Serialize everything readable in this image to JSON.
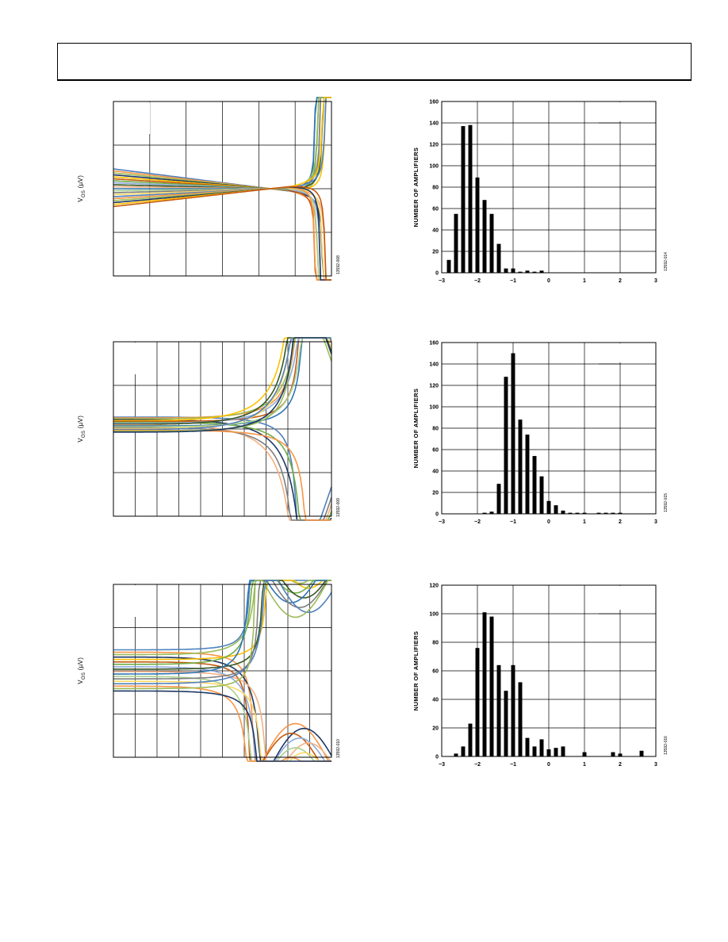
{
  "header": {},
  "left_panels": [
    {
      "ylabel_main": "V",
      "ylabel_sub": "OS",
      "ylabel_unit": " (µV)",
      "figure_id": "13592-008"
    },
    {
      "ylabel_main": "V",
      "ylabel_sub": "OS",
      "ylabel_unit": " (µV)",
      "figure_id": "13592-009"
    },
    {
      "ylabel_main": "V",
      "ylabel_sub": "OS",
      "ylabel_unit": " (µV)",
      "figure_id": "13592-010"
    }
  ],
  "histogram_ylabel": "NUMBER OF AMPLIFIERS",
  "chart_data": [
    {
      "type": "bar",
      "figure_id": "13592-014",
      "ylabel": "NUMBER OF AMPLIFIERS",
      "xlabel": "",
      "xlim": [
        -3,
        3
      ],
      "ylim": [
        0,
        160
      ],
      "xticks": [
        "−3",
        "−2",
        "−1",
        "0",
        "1",
        "2",
        "3"
      ],
      "yticks": [
        "0",
        "20",
        "40",
        "60",
        "80",
        "100",
        "120",
        "140",
        "160"
      ],
      "x": [
        -2.8,
        -2.6,
        -2.4,
        -2.2,
        -2.0,
        -1.8,
        -1.6,
        -1.4,
        -1.2,
        -1.0,
        -0.8,
        -0.6,
        -0.4,
        -0.2
      ],
      "values": [
        12,
        55,
        137,
        138,
        89,
        68,
        55,
        27,
        4,
        4,
        1,
        2,
        1,
        2
      ]
    },
    {
      "type": "bar",
      "figure_id": "13592-015",
      "ylabel": "NUMBER OF AMPLIFIERS",
      "xlabel": "",
      "xlim": [
        -3,
        3
      ],
      "ylim": [
        0,
        160
      ],
      "xticks": [
        "−3",
        "−2",
        "−1",
        "0",
        "1",
        "2",
        "3"
      ],
      "yticks": [
        "0",
        "20",
        "40",
        "60",
        "80",
        "100",
        "120",
        "140",
        "160"
      ],
      "x": [
        -1.8,
        -1.6,
        -1.4,
        -1.2,
        -1.0,
        -0.8,
        -0.6,
        -0.4,
        -0.2,
        0.0,
        0.2,
        0.4,
        0.6,
        0.8,
        1.0,
        1.4,
        1.6,
        1.8,
        2.0
      ],
      "values": [
        1,
        2,
        28,
        128,
        150,
        88,
        74,
        54,
        35,
        12,
        8,
        3,
        1,
        1,
        1,
        1,
        1,
        1,
        1
      ]
    },
    {
      "type": "bar",
      "figure_id": "13592-016",
      "ylabel": "NUMBER OF AMPLIFIERS",
      "xlabel": "",
      "xlim": [
        -3,
        3
      ],
      "ylim": [
        0,
        120
      ],
      "xticks": [
        "−3",
        "−2",
        "−1",
        "0",
        "1",
        "2",
        "3"
      ],
      "yticks": [
        "0",
        "20",
        "40",
        "60",
        "80",
        "100",
        "120"
      ],
      "x": [
        -2.6,
        -2.4,
        -2.2,
        -2.0,
        -1.8,
        -1.6,
        -1.4,
        -1.2,
        -1.0,
        -0.8,
        -0.6,
        -0.4,
        -0.2,
        0.0,
        0.2,
        0.4,
        1.0,
        1.8,
        2.0,
        2.6
      ],
      "values": [
        2,
        7,
        23,
        76,
        101,
        98,
        64,
        46,
        64,
        52,
        13,
        7,
        12,
        5,
        6,
        7,
        3,
        3,
        2,
        4
      ]
    }
  ]
}
